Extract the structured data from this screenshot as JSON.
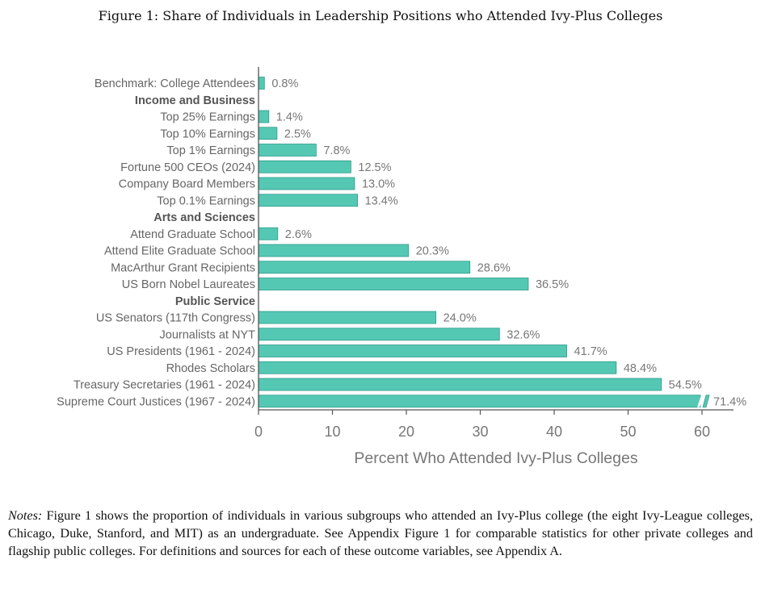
{
  "figure": {
    "title": "Figure 1: Share of Individuals in Leadership Positions who Attended Ivy-Plus Colleges"
  },
  "chart_data": {
    "type": "bar",
    "orientation": "horizontal",
    "title": "Figure 1: Share of Individuals in Leadership Positions who Attended Ivy-Plus Colleges",
    "xlabel": "Percent Who Attended Ivy-Plus Colleges",
    "ylabel": "",
    "xlim": [
      0,
      60
    ],
    "xticks": [
      0,
      10,
      20,
      30,
      40,
      50,
      60
    ],
    "bar_color": "#55c8b4",
    "bar_edge_color": "#2e9d8a",
    "grid": false,
    "rows": [
      {
        "label": "Benchmark: College Attendees",
        "value": 0.8,
        "value_label": "0.8%"
      },
      {
        "label": "Income and Business",
        "header": true
      },
      {
        "label": "Top 25% Earnings",
        "value": 1.4,
        "value_label": "1.4%"
      },
      {
        "label": "Top 10% Earnings",
        "value": 2.5,
        "value_label": "2.5%"
      },
      {
        "label": "Top 1% Earnings",
        "value": 7.8,
        "value_label": "7.8%"
      },
      {
        "label": "Fortune 500 CEOs (2024)",
        "value": 12.5,
        "value_label": "12.5%"
      },
      {
        "label": "Company Board Members",
        "value": 13.0,
        "value_label": "13.0%"
      },
      {
        "label": "Top 0.1% Earnings",
        "value": 13.4,
        "value_label": "13.4%"
      },
      {
        "label": "Arts and Sciences",
        "header": true
      },
      {
        "label": "Attend Graduate School",
        "value": 2.6,
        "value_label": "2.6%"
      },
      {
        "label": "Attend Elite Graduate School",
        "value": 20.3,
        "value_label": "20.3%"
      },
      {
        "label": "MacArthur Grant Recipients",
        "value": 28.6,
        "value_label": "28.6%"
      },
      {
        "label": "US Born Nobel Laureates",
        "value": 36.5,
        "value_label": "36.5%"
      },
      {
        "label": "Public Service",
        "header": true
      },
      {
        "label": "US Senators (117th Congress)",
        "value": 24.0,
        "value_label": "24.0%"
      },
      {
        "label": "Journalists at NYT",
        "value": 32.6,
        "value_label": "32.6%"
      },
      {
        "label": "US Presidents (1961 - 2024)",
        "value": 41.7,
        "value_label": "41.7%"
      },
      {
        "label": "Rhodes Scholars",
        "value": 48.4,
        "value_label": "48.4%"
      },
      {
        "label": "Treasury Secretaries (1961 - 2024)",
        "value": 54.5,
        "value_label": "54.5%"
      },
      {
        "label": "Supreme Court Justices (1967 - 2024)",
        "value": 71.4,
        "value_label": "71.4%",
        "axis_break": true
      }
    ]
  },
  "notes": {
    "label": "Notes:",
    "text": " Figure 1 shows the proportion of individuals in various subgroups who attended an Ivy-Plus college (the eight Ivy-League colleges, Chicago, Duke, Stanford, and MIT) as an undergraduate.  See Appendix Figure 1 for comparable statistics for other private colleges and flagship public colleges. For definitions and sources for each of these outcome variables, see Appendix A."
  }
}
